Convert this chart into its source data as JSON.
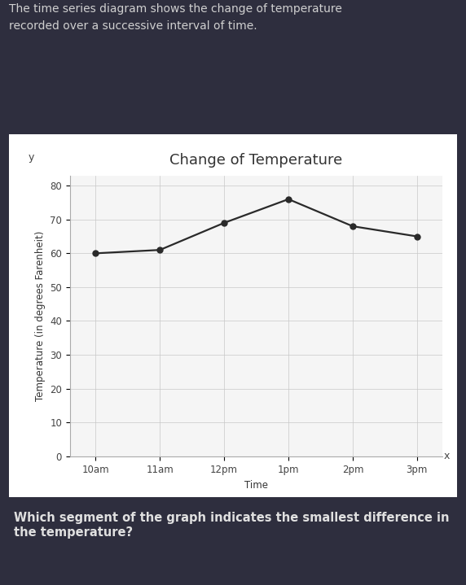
{
  "title": "Change of Temperature",
  "xlabel": "Time",
  "ylabel": "Temperature (in degrees Farenheit)",
  "x_labels": [
    "10am",
    "11am",
    "12pm",
    "1pm",
    "2pm",
    "3pm"
  ],
  "y_values": [
    60,
    61,
    69,
    76,
    68,
    65
  ],
  "ylim": [
    0,
    83
  ],
  "yticks": [
    0,
    10,
    20,
    30,
    40,
    50,
    60,
    70,
    80
  ],
  "line_color": "#2a2a2a",
  "marker_color": "#2a2a2a",
  "marker_size": 5,
  "line_width": 1.6,
  "bg_color_chart": "#f0f0f0",
  "bg_color_outer": "#2e2e3e",
  "title_fontsize": 13,
  "axis_label_fontsize": 8.5,
  "tick_fontsize": 8.5,
  "header_text_line1": "The time series diagram shows the change of temperature",
  "header_text_line2": "recorded over a successive interval of time.",
  "footer_text": "Which segment of the graph indicates the smallest difference in\nthe temperature?",
  "header_color": "#d0d0d0",
  "footer_color": "#e0e0e0",
  "x_axis_letter": "x",
  "y_axis_letter": "y",
  "chart_bg": "#f5f5f5",
  "grid_color": "#c8c8c8",
  "tick_color": "#444444",
  "title_color": "#333333",
  "ylabel_color": "#333333",
  "xlabel_color": "#333333"
}
